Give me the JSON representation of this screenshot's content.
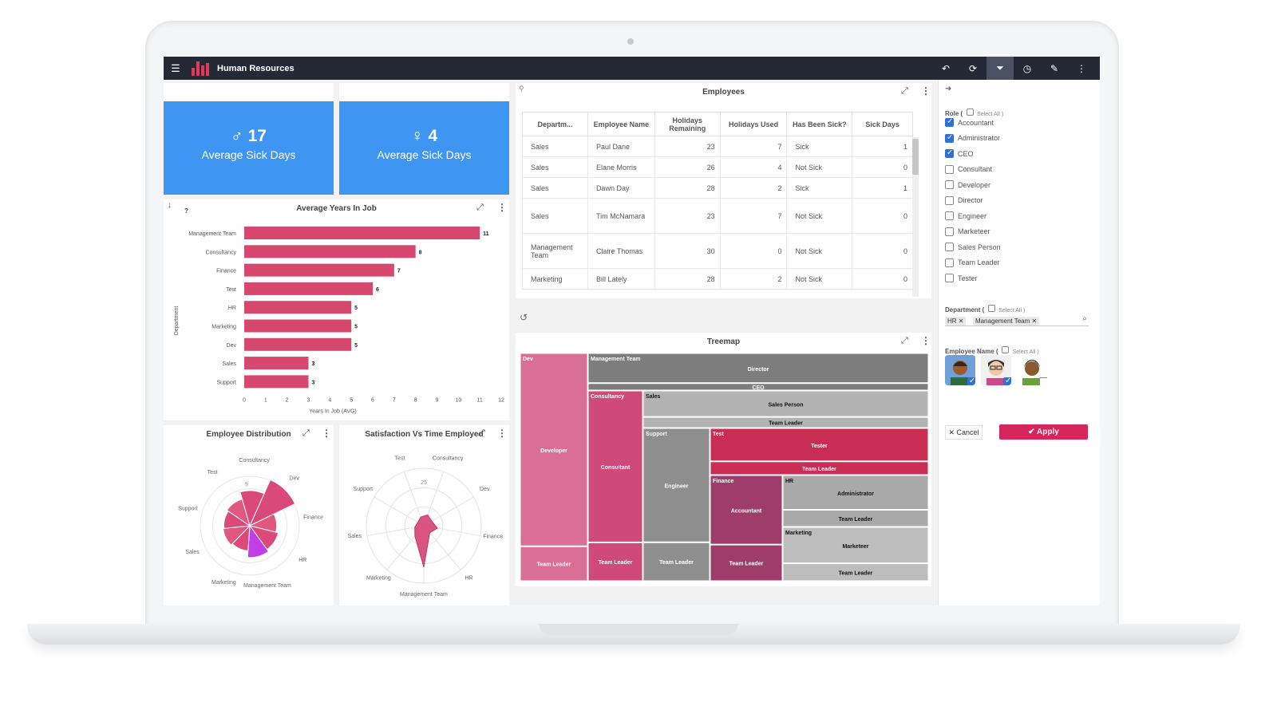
{
  "app": {
    "title": "Human Resources",
    "brand_color": "#232a36",
    "accent": "#e23a5a",
    "toolbar_icons": [
      "undo-icon",
      "refresh-icon",
      "filter-icon",
      "clock-icon",
      "wrench-icon",
      "more-icon"
    ]
  },
  "kpis": [
    {
      "symbol": "♂",
      "value": "17",
      "label": "Average Sick Days"
    },
    {
      "symbol": "♀",
      "value": "4",
      "label": "Average Sick Days"
    }
  ],
  "employees": {
    "title": "Employees",
    "columns": [
      "Departm...",
      "Employee Name",
      "Holidays Remaining",
      "Holidays Used",
      "Has Been Sick?",
      "Sick Days"
    ],
    "rows": [
      [
        "Sales",
        "Paul Dane",
        "23",
        "7",
        "Sick",
        "1"
      ],
      [
        "Sales",
        "Elane Morris",
        "26",
        "4",
        "Not Sick",
        "0"
      ],
      [
        "Sales",
        "Dawn Day",
        "28",
        "2",
        "Sick",
        "1"
      ],
      [
        "Sales",
        "Tim McNamara",
        "23",
        "7",
        "Not Sick",
        "0"
      ],
      [
        "Management Team",
        "Claire Thomas",
        "30",
        "0",
        "Not Sick",
        "0"
      ],
      [
        "Marketing",
        "Bill Lately",
        "28",
        "2",
        "Not Sick",
        "0"
      ]
    ]
  },
  "charts": {
    "bar_title": "Average Years In Job",
    "distribution_title": "Employee Distribution",
    "radar_title": "Satisfaction Vs Time Employed",
    "treemap_title": "Treemap",
    "help_mark": "?"
  },
  "chart_data": [
    {
      "type": "bar",
      "orientation": "horizontal",
      "title": "Average Years In Job",
      "xlabel": "Years In Job (AVG)",
      "ylabel": "Department",
      "categories": [
        "Management Team",
        "Consultancy",
        "Finance",
        "Test",
        "HR",
        "Marketing",
        "Dev",
        "Sales",
        "Support"
      ],
      "values": [
        11,
        8,
        7,
        6,
        5,
        5,
        5,
        3,
        3
      ],
      "xlim": [
        0,
        12
      ],
      "xticks": [
        0,
        1,
        2,
        3,
        4,
        5,
        6,
        7,
        8,
        9,
        10,
        11,
        12
      ],
      "color": "#d6486e"
    },
    {
      "type": "polar-area",
      "title": "Employee Distribution",
      "categories": [
        "Dev",
        "Finance",
        "HR",
        "Management Team",
        "Marketing",
        "Sales",
        "Support",
        "Test",
        "Consultancy"
      ],
      "radial_tick": "5",
      "values": [
        6,
        3.2,
        3.5,
        3.8,
        3.0,
        3.2,
        3.1,
        3.3,
        4.2
      ],
      "highlight": "Management Team",
      "color": "#d94a7a",
      "highlight_color": "#c03de8"
    },
    {
      "type": "radar",
      "title": "Satisfaction Vs Time Employed",
      "categories": [
        "Consultancy",
        "Dev",
        "Finance",
        "HR",
        "Management Team",
        "Marketing",
        "Sales",
        "Support",
        "Test"
      ],
      "radial_tick": "25",
      "values": [
        5,
        4,
        6,
        4,
        18,
        6,
        4,
        3,
        4
      ],
      "rmax": 25,
      "color": "#d94a7a"
    },
    {
      "type": "treemap",
      "title": "Treemap",
      "groups": [
        {
          "name": "Dev",
          "color": "#d96f95",
          "children": [
            {
              "name": "Developer"
            },
            {
              "name": "Team Leader"
            }
          ]
        },
        {
          "name": "Management Team",
          "color": "#7d7d7d",
          "children": [
            {
              "name": "Director"
            },
            {
              "name": "CEO"
            }
          ]
        },
        {
          "name": "Consultancy",
          "color": "#cf4a78",
          "children": [
            {
              "name": "Consultant"
            },
            {
              "name": "Team Leader"
            }
          ]
        },
        {
          "name": "Sales",
          "color": "#b3b3b3",
          "children": [
            {
              "name": "Sales Person"
            },
            {
              "name": "Team Leader"
            }
          ]
        },
        {
          "name": "Support",
          "color": "#8e8e8e",
          "children": [
            {
              "name": "Engineer"
            },
            {
              "name": "Team Leader"
            }
          ]
        },
        {
          "name": "Test",
          "color": "#c92d54",
          "children": [
            {
              "name": "Tester"
            },
            {
              "name": "Team Leader"
            }
          ]
        },
        {
          "name": "Finance",
          "color": "#9e3c6b",
          "children": [
            {
              "name": "Accountant"
            },
            {
              "name": "Team Leader"
            }
          ]
        },
        {
          "name": "HR",
          "color": "#a9a9a9",
          "children": [
            {
              "name": "Administrator"
            },
            {
              "name": "Team Leader"
            }
          ]
        },
        {
          "name": "Marketing",
          "color": "#bdbdbd",
          "children": [
            {
              "name": "Marketeer"
            },
            {
              "name": "Team Leader"
            }
          ]
        }
      ]
    }
  ],
  "filters": {
    "role": {
      "label": "Role (",
      "select_all": "Select All )",
      "options": [
        {
          "label": "Accountant",
          "checked": true
        },
        {
          "label": "Administrator",
          "checked": true
        },
        {
          "label": "CEO",
          "checked": true
        },
        {
          "label": "Consultant",
          "checked": false
        },
        {
          "label": "Developer",
          "checked": false
        },
        {
          "label": "Director",
          "checked": false
        },
        {
          "label": "Engineer",
          "checked": false
        },
        {
          "label": "Marketeer",
          "checked": false
        },
        {
          "label": "Sales Person",
          "checked": false
        },
        {
          "label": "Team Leader",
          "checked": false
        },
        {
          "label": "Tester",
          "checked": false
        }
      ]
    },
    "department": {
      "label": "Department (",
      "select_all": "Select All )",
      "tags": [
        "HR ✕",
        "Management Team ✕"
      ]
    },
    "employee_name": {
      "label": "Employee Name (",
      "select_all": "Select All )",
      "avatars": [
        {
          "name": "avatar-1",
          "checked": true
        },
        {
          "name": "avatar-2",
          "checked": true
        },
        {
          "name": "avatar-3",
          "checked": false
        }
      ]
    },
    "cancel_label": "✕ Cancel",
    "apply_label": "✔ Apply"
  }
}
